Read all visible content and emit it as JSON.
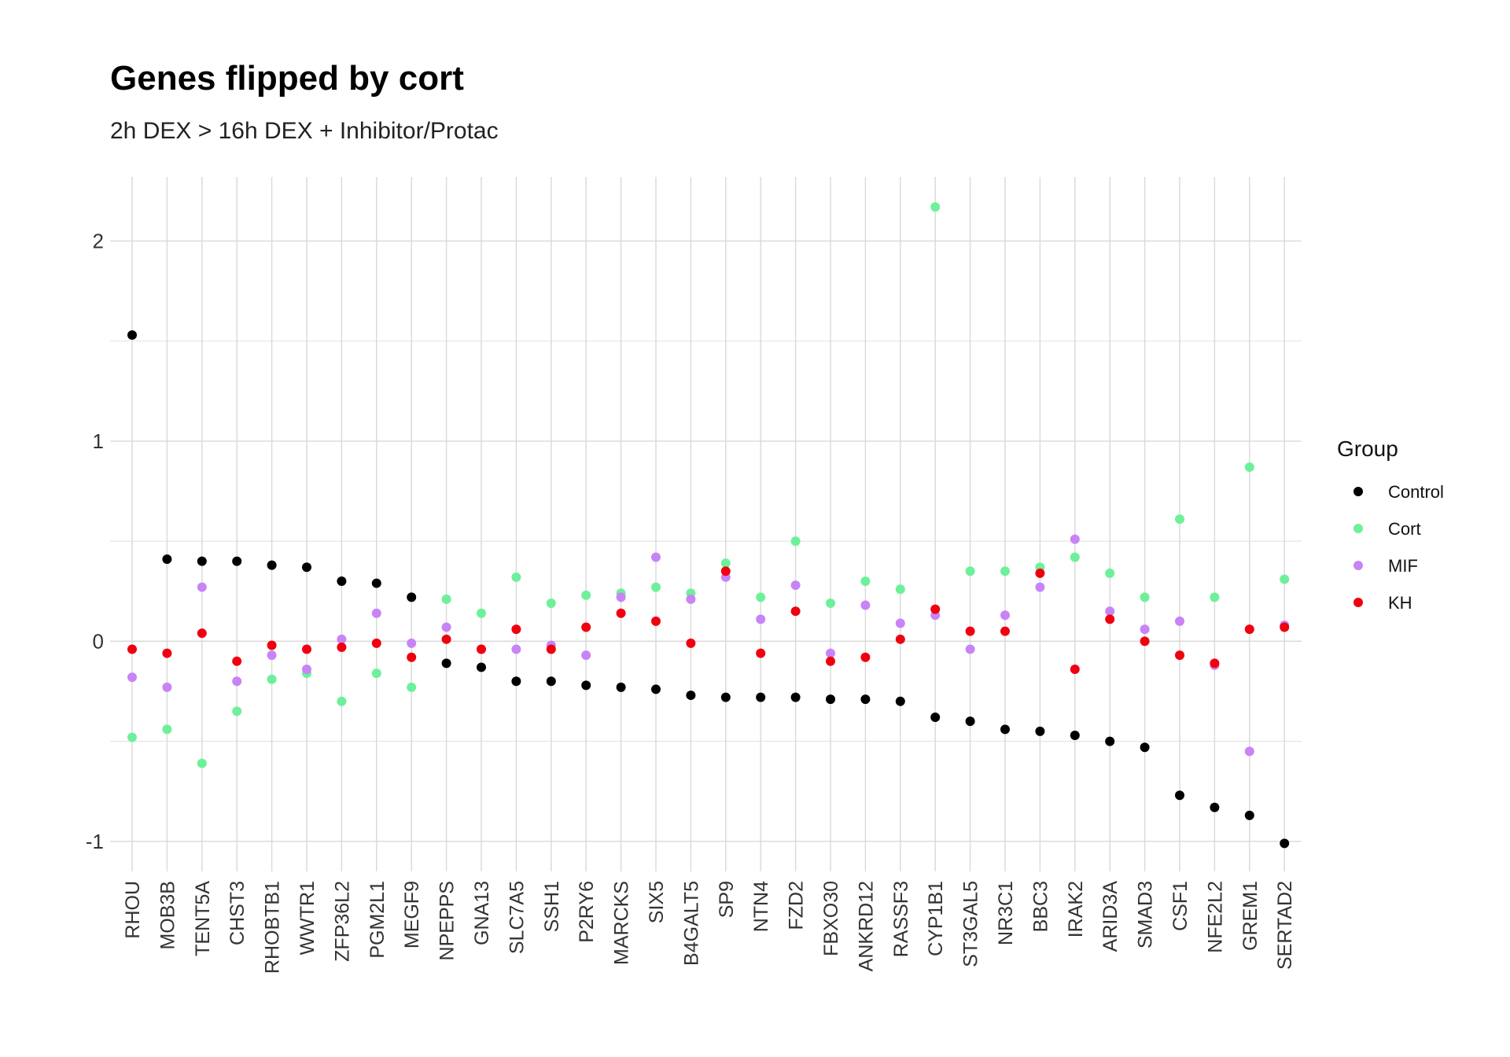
{
  "chart_data": {
    "type": "scatter",
    "title": "Genes flipped by cort",
    "subtitle": "2h DEX > 16h DEX + Inhibitor/Protac",
    "xlabel": "",
    "ylabel": "",
    "ylim": [
      -1.15,
      2.32
    ],
    "yticks": [
      -1,
      0,
      1,
      2
    ],
    "yticklabels": [
      "-1",
      "0",
      "1",
      "2"
    ],
    "grid": true,
    "legend": {
      "title": "Group",
      "placement": "right"
    },
    "categories": [
      "RHOU",
      "MOB3B",
      "TENT5A",
      "CHST3",
      "RHOBTB1",
      "WWTR1",
      "ZFP36L2",
      "PGM2L1",
      "MEGF9",
      "NPEPPS",
      "GNA13",
      "SLC7A5",
      "SSH1",
      "P2RY6",
      "MARCKS",
      "SIX5",
      "B4GALT5",
      "SP9",
      "NTN4",
      "FZD2",
      "FBXO30",
      "ANKRD12",
      "RASSF3",
      "CYP1B1",
      "ST3GAL5",
      "NR3C1",
      "BBC3",
      "IRAK2",
      "ARID3A",
      "SMAD3",
      "CSF1",
      "NFE2L2",
      "GREM1",
      "SERTAD2"
    ],
    "series": [
      {
        "name": "Control",
        "color": "#000000",
        "values": [
          1.53,
          0.41,
          0.4,
          0.4,
          0.38,
          0.37,
          0.3,
          0.29,
          0.22,
          -0.11,
          -0.13,
          -0.2,
          -0.2,
          -0.22,
          -0.23,
          -0.24,
          -0.27,
          -0.28,
          -0.28,
          -0.28,
          -0.29,
          -0.29,
          -0.3,
          -0.38,
          -0.4,
          -0.44,
          -0.45,
          -0.47,
          -0.5,
          -0.53,
          -0.77,
          -0.83,
          -0.87,
          -1.01
        ]
      },
      {
        "name": "Cort",
        "color": "#6ef09a",
        "values": [
          -0.48,
          -0.44,
          -0.61,
          -0.35,
          -0.19,
          -0.16,
          -0.3,
          -0.16,
          -0.23,
          0.21,
          0.14,
          0.32,
          0.19,
          0.23,
          0.24,
          0.27,
          0.24,
          0.39,
          0.22,
          0.5,
          0.19,
          0.3,
          0.26,
          2.17,
          0.35,
          0.35,
          0.37,
          0.42,
          0.34,
          0.22,
          0.61,
          0.22,
          0.87,
          0.31
        ]
      },
      {
        "name": "MIF",
        "color": "#c884f7",
        "values": [
          -0.18,
          -0.23,
          0.27,
          -0.2,
          -0.07,
          -0.14,
          0.01,
          0.14,
          -0.01,
          0.07,
          -0.04,
          -0.04,
          -0.02,
          -0.07,
          0.22,
          0.42,
          0.21,
          0.32,
          0.11,
          0.28,
          -0.06,
          0.18,
          0.09,
          0.13,
          -0.04,
          0.13,
          0.27,
          0.51,
          0.15,
          0.06,
          0.1,
          -0.12,
          -0.55,
          0.08
        ]
      },
      {
        "name": "KH",
        "color": "#f0000f",
        "values": [
          -0.04,
          -0.06,
          0.04,
          -0.1,
          -0.02,
          -0.04,
          -0.03,
          -0.01,
          -0.08,
          0.01,
          -0.04,
          0.06,
          -0.04,
          0.07,
          0.14,
          0.1,
          -0.01,
          0.35,
          -0.06,
          0.15,
          -0.1,
          -0.08,
          0.01,
          0.16,
          0.05,
          0.05,
          0.34,
          -0.14,
          0.11,
          0.0,
          -0.07,
          -0.11,
          0.06,
          0.07
        ]
      }
    ]
  }
}
